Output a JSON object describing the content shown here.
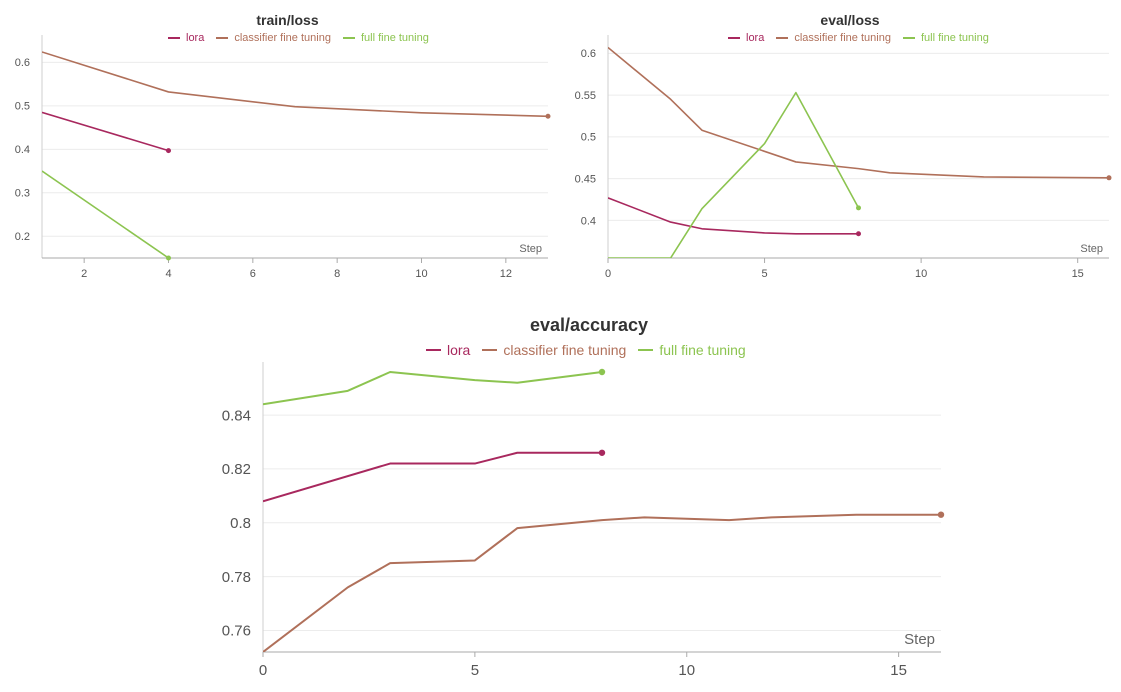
{
  "colors": {
    "lora": "#a8285e",
    "classifier fine tuning": "#b0705a",
    "full fine tuning": "#8cc450",
    "grid": "#ececec",
    "axis": "#cfcfcf"
  },
  "chart_data": [
    {
      "type": "line",
      "title": "train/loss",
      "xlabel": "Step",
      "ylabel": "",
      "xlim": [
        1,
        13
      ],
      "ylim": [
        0.15,
        0.64
      ],
      "xticks": [
        2,
        4,
        6,
        8,
        10,
        12
      ],
      "yticks": [
        0.2,
        0.3,
        0.4,
        0.5,
        0.6
      ],
      "ytick_labels": [
        "0.2",
        "0.3",
        "0.4",
        "0.5",
        "0.6"
      ],
      "legend": [
        "lora",
        "classifier fine tuning",
        "full fine tuning"
      ],
      "legend_position": "top-center",
      "grid": true,
      "series": [
        {
          "name": "lora",
          "x": [
            1,
            4
          ],
          "y": [
            0.485,
            0.397
          ]
        },
        {
          "name": "classifier fine tuning",
          "x": [
            1,
            4,
            7,
            10,
            13
          ],
          "y": [
            0.624,
            0.532,
            0.498,
            0.484,
            0.476
          ]
        },
        {
          "name": "full fine tuning",
          "x": [
            1,
            4
          ],
          "y": [
            0.35,
            0.15
          ]
        }
      ]
    },
    {
      "type": "line",
      "title": "eval/loss",
      "xlabel": "Step",
      "ylabel": "",
      "xlim": [
        0,
        16
      ],
      "ylim": [
        0.355,
        0.61
      ],
      "xticks": [
        0,
        5,
        10,
        15
      ],
      "yticks": [
        0.4,
        0.45,
        0.5,
        0.55,
        0.6
      ],
      "ytick_labels": [
        "0.4",
        "0.45",
        "0.5",
        "0.55",
        "0.6"
      ],
      "legend": [
        "lora",
        "classifier fine tuning",
        "full fine tuning"
      ],
      "legend_position": "top-center",
      "grid": true,
      "series": [
        {
          "name": "lora",
          "x": [
            0,
            2,
            3,
            5,
            6,
            8
          ],
          "y": [
            0.427,
            0.398,
            0.39,
            0.385,
            0.384,
            0.384
          ]
        },
        {
          "name": "classifier fine tuning",
          "x": [
            0,
            2,
            3,
            6,
            8,
            9,
            12,
            16
          ],
          "y": [
            0.607,
            0.545,
            0.508,
            0.47,
            0.462,
            0.457,
            0.452,
            0.451
          ]
        },
        {
          "name": "full fine tuning",
          "x": [
            0,
            2,
            3,
            5,
            6,
            8
          ],
          "y": [
            0.355,
            0.355,
            0.414,
            0.492,
            0.553,
            0.415
          ]
        }
      ]
    },
    {
      "type": "line",
      "title": "eval/accuracy",
      "xlabel": "Step",
      "ylabel": "",
      "xlim": [
        0,
        16
      ],
      "ylim": [
        0.752,
        0.856
      ],
      "xticks": [
        0,
        5,
        10,
        15
      ],
      "yticks": [
        0.76,
        0.78,
        0.8,
        0.82,
        0.84
      ],
      "ytick_labels": [
        "0.76",
        "0.78",
        "0.8",
        "0.82",
        "0.84"
      ],
      "legend": [
        "lora",
        "classifier fine tuning",
        "full fine tuning"
      ],
      "legend_position": "top-center",
      "grid": true,
      "series": [
        {
          "name": "lora",
          "x": [
            0,
            3,
            5,
            6,
            8
          ],
          "y": [
            0.808,
            0.822,
            0.822,
            0.826,
            0.826
          ]
        },
        {
          "name": "classifier fine tuning",
          "x": [
            0,
            2,
            3,
            5,
            6,
            8,
            9,
            11,
            12,
            14,
            16
          ],
          "y": [
            0.752,
            0.776,
            0.785,
            0.786,
            0.798,
            0.801,
            0.802,
            0.801,
            0.802,
            0.803,
            0.803
          ]
        },
        {
          "name": "full fine tuning",
          "x": [
            0,
            2,
            3,
            5,
            6,
            8
          ],
          "y": [
            0.844,
            0.849,
            0.856,
            0.853,
            0.852,
            0.856
          ]
        }
      ]
    }
  ]
}
